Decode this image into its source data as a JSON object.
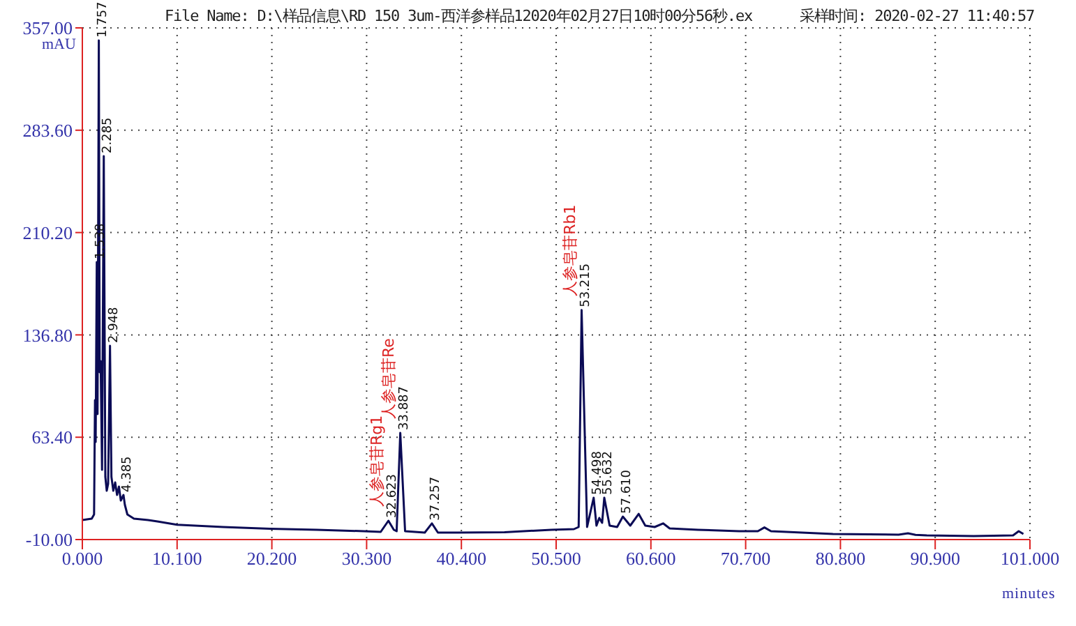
{
  "chart_data": {
    "type": "line",
    "title": "File Name: D:\\样品信息\\RD 150 3um-西洋参样品12020年02月27日10时00分56秒.ex",
    "subtitle": "采样时间: 2020-02-27 11:40:57",
    "xlabel": "minutes",
    "ylabel": "mAU",
    "x": [
      0,
      1.0,
      1.25,
      1.35,
      1.42,
      1.538,
      1.62,
      1.757,
      1.85,
      1.95,
      2.1,
      2.285,
      2.45,
      2.6,
      2.75,
      2.948,
      3.1,
      3.3,
      3.5,
      3.7,
      3.9,
      4.1,
      4.385,
      4.53,
      4.8,
      5.5,
      7,
      8,
      10.1,
      15,
      20,
      25,
      30,
      31.8,
      32.623,
      33.2,
      33.5,
      33.887,
      34.4,
      36.5,
      37.257,
      37.9,
      40,
      45,
      50,
      52.4,
      52.9,
      53.215,
      53.8,
      54.498,
      54.8,
      55.1,
      55.4,
      55.632,
      56.2,
      57,
      57.61,
      58.4,
      59.3,
      60,
      61,
      61.9,
      62.6,
      65.6,
      70,
      72,
      72.7,
      73.4,
      80,
      87,
      88,
      88.8,
      90,
      95,
      99.2,
      99.8,
      100.3
    ],
    "series": [
      {
        "color": "#0b0b55",
        "values": [
          4,
          5,
          8,
          90,
          60,
          189,
          80,
          348,
          110,
          118,
          40,
          265,
          35,
          25,
          30,
          129,
          35,
          25,
          31,
          22,
          28,
          18,
          22,
          15,
          8,
          5,
          4,
          3,
          0.6,
          -1,
          -2.3,
          -3,
          -4,
          -4.5,
          3.5,
          -3,
          -4,
          66.5,
          -4,
          -5,
          1.6,
          -5,
          -5,
          -4.7,
          -3,
          -2.5,
          -1,
          154.6,
          -1,
          20,
          0,
          5.5,
          2,
          20,
          0,
          -1,
          6.5,
          0,
          8.4,
          0,
          -1,
          1.6,
          -2,
          -3,
          -4,
          -4,
          -1.3,
          -4,
          -6,
          -6.5,
          -5.5,
          -6.6,
          -7,
          -7.5,
          -7,
          -4,
          -6
        ]
      }
    ],
    "xlim": [
      0,
      101
    ],
    "xticks": [
      {
        "value": 0,
        "label": "0.000"
      },
      {
        "value": 10.1,
        "label": "10.100"
      },
      {
        "value": 20.2,
        "label": "20.200"
      },
      {
        "value": 30.3,
        "label": "30.300"
      },
      {
        "value": 40.4,
        "label": "40.400"
      },
      {
        "value": 50.5,
        "label": "50.500"
      },
      {
        "value": 60.6,
        "label": "60.600"
      },
      {
        "value": 70.7,
        "label": "70.700"
      },
      {
        "value": 80.8,
        "label": "80.800"
      },
      {
        "value": 90.9,
        "label": "90.900"
      },
      {
        "value": 101,
        "label": "101.000"
      }
    ],
    "ylim": [
      -10,
      357
    ],
    "yticks": [
      {
        "value": -10,
        "label": "-10.00"
      },
      {
        "value": 63.4,
        "label": "63.40"
      },
      {
        "value": 136.8,
        "label": "136.80"
      },
      {
        "value": 210.2,
        "label": "210.20"
      },
      {
        "value": 283.6,
        "label": "283.60"
      },
      {
        "value": 357,
        "label": "357.00"
      }
    ],
    "grid": true,
    "marker": "none",
    "line_style": "solid",
    "legend": false,
    "annotations": [
      {
        "text": "1.757",
        "x": 1.757,
        "y": 348
      },
      {
        "text": "2.285",
        "x": 2.285,
        "y": 265
      },
      {
        "text": "1.538",
        "x": 1.538,
        "y": 189
      },
      {
        "text": "2.948",
        "x": 2.948,
        "y": 129
      },
      {
        "text": "4.385",
        "x": 4.385,
        "y": 22
      },
      {
        "text": "32.623",
        "x": 32.623,
        "y": 3.5
      },
      {
        "text": "人参皂苷Rg1",
        "x": 32.623,
        "y": 3.5
      },
      {
        "text": "33.887",
        "x": 33.887,
        "y": 66.5
      },
      {
        "text": "人参皂苷Re",
        "x": 33.887,
        "y": 66.5
      },
      {
        "text": "37.257",
        "x": 37.257,
        "y": 1.6
      },
      {
        "text": "53.215",
        "x": 53.215,
        "y": 154.6
      },
      {
        "text": "人参皂苷Rb1",
        "x": 53.215,
        "y": 154.6
      },
      {
        "text": "54.498",
        "x": 54.498,
        "y": 20
      },
      {
        "text": "55.632",
        "x": 55.632,
        "y": 20
      },
      {
        "text": "57.610",
        "x": 57.61,
        "y": 6.5
      }
    ]
  }
}
